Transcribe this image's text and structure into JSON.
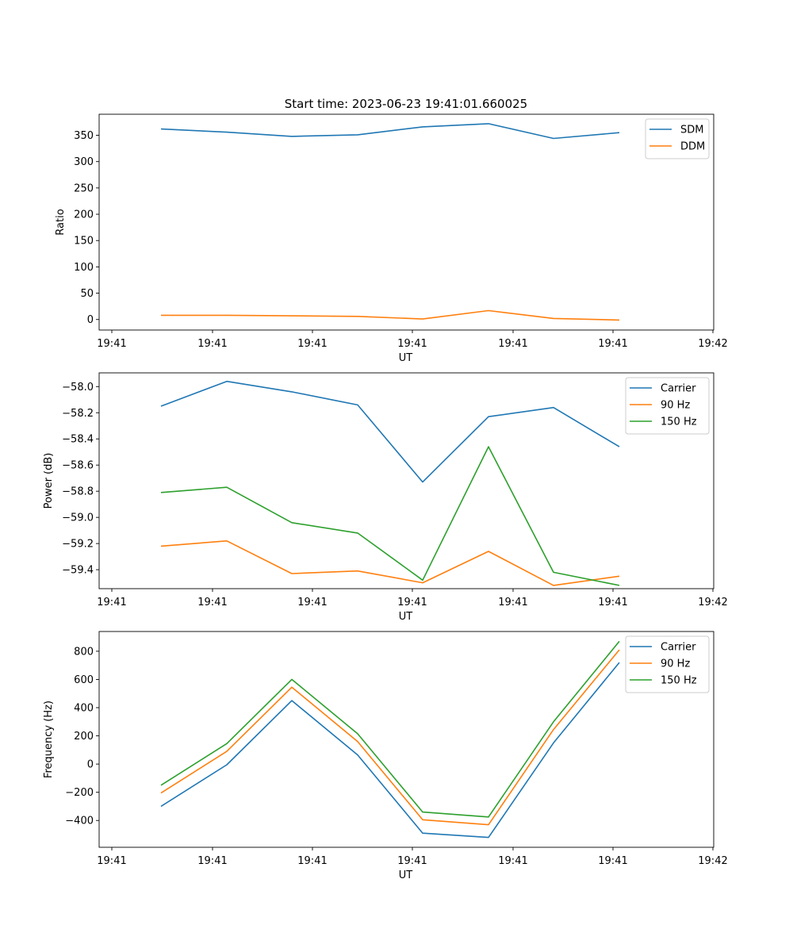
{
  "title": "Start time: 2023-06-23 19:41:01.660025",
  "colors": {
    "blue": "#1f77b4",
    "orange": "#ff7f0e",
    "green": "#2ca02c"
  },
  "chart_data": [
    {
      "type": "line",
      "xlabel": "UT",
      "ylabel": "Ratio",
      "x_tick_labels": [
        "19:41",
        "19:41",
        "19:41",
        "19:41",
        "19:41",
        "19:41",
        "19:42"
      ],
      "y_ticks": [
        0,
        50,
        100,
        150,
        200,
        250,
        300,
        350
      ],
      "y_tick_labels": [
        "0",
        "50",
        "100",
        "150",
        "200",
        "250",
        "300",
        "350"
      ],
      "ylim": [
        -20,
        390
      ],
      "legend_position": "upper right",
      "series": [
        {
          "name": "SDM",
          "color": "#1f77b4",
          "values": [
            362,
            356,
            348,
            351,
            366,
            372,
            344,
            355
          ]
        },
        {
          "name": "DDM",
          "color": "#ff7f0e",
          "values": [
            8,
            8,
            7,
            6,
            1,
            17,
            2,
            -1
          ]
        }
      ]
    },
    {
      "type": "line",
      "xlabel": "UT",
      "ylabel": "Power (dB)",
      "x_tick_labels": [
        "19:41",
        "19:41",
        "19:41",
        "19:41",
        "19:41",
        "19:41",
        "19:42"
      ],
      "y_ticks": [
        -59.4,
        -59.2,
        -59.0,
        -58.8,
        -58.6,
        -58.4,
        -58.2,
        -58.0
      ],
      "y_tick_labels": [
        "−59.4",
        "−59.2",
        "−59.0",
        "−58.8",
        "−58.6",
        "−58.4",
        "−58.2",
        "−58.0"
      ],
      "ylim": [
        -59.545,
        -57.895
      ],
      "legend_position": "upper right",
      "series": [
        {
          "name": "Carrier",
          "color": "#1f77b4",
          "values": [
            -58.15,
            -57.96,
            -58.04,
            -58.14,
            -58.73,
            -58.23,
            -58.16,
            -58.46
          ]
        },
        {
          "name": "90 Hz",
          "color": "#ff7f0e",
          "values": [
            -59.22,
            -59.18,
            -59.43,
            -59.41,
            -59.5,
            -59.26,
            -59.52,
            -59.45
          ]
        },
        {
          "name": "150 Hz",
          "color": "#2ca02c",
          "values": [
            -58.81,
            -58.77,
            -59.04,
            -59.12,
            -59.48,
            -58.46,
            -59.42,
            -59.52
          ]
        }
      ]
    },
    {
      "type": "line",
      "xlabel": "UT",
      "ylabel": "Frequency (Hz)",
      "x_tick_labels": [
        "19:41",
        "19:41",
        "19:41",
        "19:41",
        "19:41",
        "19:41",
        "19:42"
      ],
      "y_ticks": [
        -400,
        -200,
        0,
        200,
        400,
        600,
        800
      ],
      "y_tick_labels": [
        "−400",
        "−200",
        "0",
        "200",
        "400",
        "600",
        "800"
      ],
      "ylim": [
        -590,
        940
      ],
      "legend_position": "upper right",
      "series": [
        {
          "name": "Carrier",
          "color": "#1f77b4",
          "values": [
            -300,
            -5,
            450,
            65,
            -490,
            -520,
            150,
            720
          ]
        },
        {
          "name": "90 Hz",
          "color": "#ff7f0e",
          "values": [
            -205,
            90,
            545,
            160,
            -395,
            -430,
            245,
            810
          ]
        },
        {
          "name": "150 Hz",
          "color": "#2ca02c",
          "values": [
            -150,
            145,
            600,
            215,
            -340,
            -375,
            300,
            870
          ]
        }
      ]
    }
  ]
}
